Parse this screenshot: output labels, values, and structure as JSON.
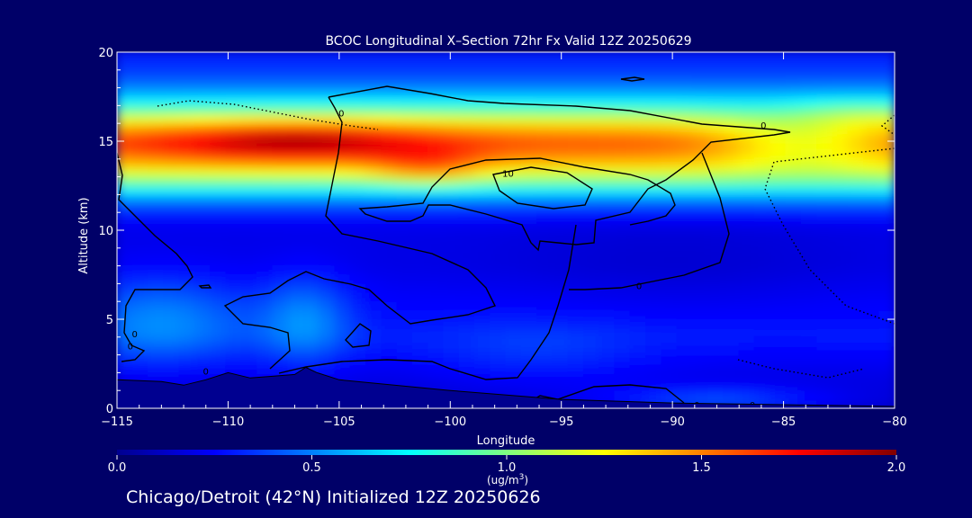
{
  "chart_data": {
    "type": "heatmap",
    "title": "BCOC Longitudinal X–Section 72hr  Fx Valid 12Z 20250629",
    "xlabel": "Longitude",
    "ylabel": "Altitude (km)",
    "xlim": [
      -115,
      -80
    ],
    "ylim": [
      0,
      20
    ],
    "x_ticks": [
      -115,
      -110,
      -105,
      -100,
      -95,
      -90,
      -85,
      -80
    ],
    "x_tick_labels": [
      "−115",
      "−110",
      "−105",
      "−100",
      "−95",
      "−90",
      "−85",
      "−80"
    ],
    "y_ticks": [
      0,
      5,
      10,
      15,
      20
    ],
    "y_tick_labels": [
      "0",
      "5",
      "10",
      "15",
      "20"
    ],
    "colorbar": {
      "range": [
        0.0,
        2.0
      ],
      "ticks": [
        0.0,
        0.5,
        1.0,
        1.5,
        2.0
      ],
      "tick_labels": [
        "0.0",
        "0.5",
        "1.0",
        "1.5",
        "2.0"
      ],
      "unit_line1": "(ug/m",
      "unit_sup": "3",
      "unit_line2": ")",
      "colormap": [
        "#00008f",
        "#0000ff",
        "#0080ff",
        "#00ffff",
        "#80ff80",
        "#ffff00",
        "#ff8000",
        "#ff0000",
        "#800000"
      ]
    },
    "field_profile": {
      "altitude_km": [
        0.5,
        2,
        4,
        6,
        8,
        10,
        11,
        12,
        13,
        14,
        15,
        16,
        17,
        18,
        19,
        20
      ],
      "base_value": [
        0.15,
        0.2,
        0.3,
        0.25,
        0.2,
        0.2,
        0.3,
        0.6,
        1.1,
        1.45,
        1.6,
        1.3,
        0.8,
        0.5,
        0.35,
        0.3
      ]
    },
    "contour_labels": [
      {
        "text": "0",
        "lon": -104.9,
        "alt": 16.6
      },
      {
        "text": "0",
        "lon": -85.9,
        "alt": 15.9
      },
      {
        "text": "10",
        "lon": -97.4,
        "alt": 13.2
      },
      {
        "text": "0",
        "lon": -91.5,
        "alt": 6.9
      },
      {
        "text": "0",
        "lon": -114.2,
        "alt": 4.2
      },
      {
        "text": "0",
        "lon": -114.4,
        "alt": 3.5
      },
      {
        "text": "0",
        "lon": -111.0,
        "alt": 2.1
      },
      {
        "text": "0",
        "lon": -88.9,
        "alt": 0.2
      },
      {
        "text": "0",
        "lon": -86.4,
        "alt": 0.2
      }
    ],
    "terrain": {
      "lon": [
        -115,
        -113,
        -112,
        -111,
        -110,
        -109,
        -108,
        -107,
        -106.5,
        -106,
        -105,
        -100,
        -95,
        -90,
        -85,
        -80
      ],
      "alt": [
        1.6,
        1.5,
        1.3,
        1.6,
        2.0,
        1.7,
        1.8,
        1.9,
        2.3,
        2.0,
        1.6,
        1.0,
        0.5,
        0.3,
        0.2,
        0.1
      ]
    }
  },
  "footer": {
    "text": "Chicago/Detroit (42°N) Initialized 12Z 20250626"
  }
}
